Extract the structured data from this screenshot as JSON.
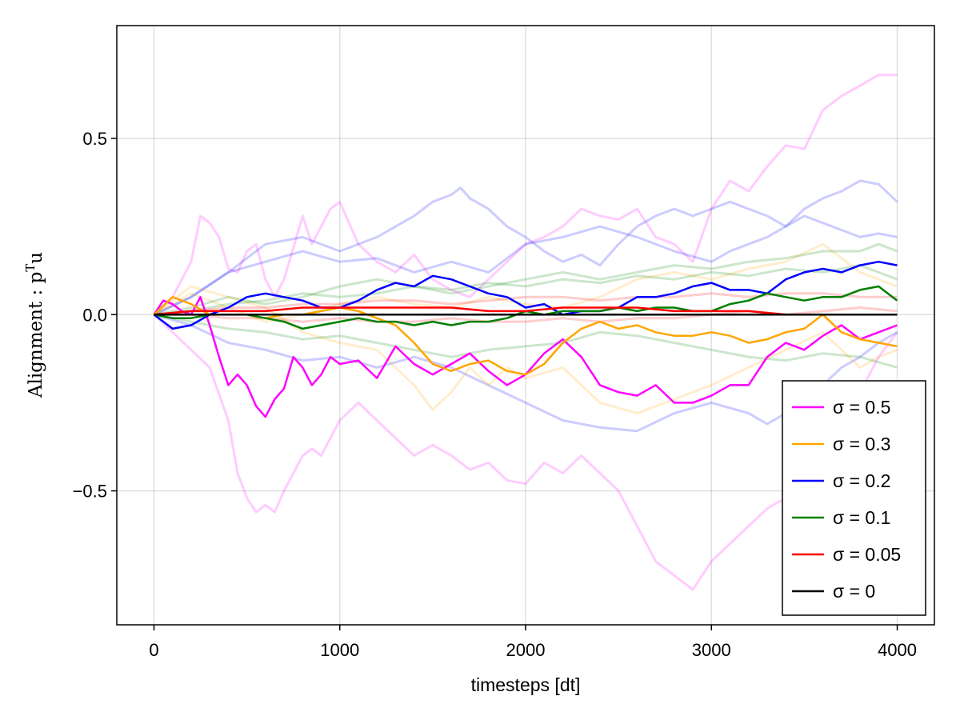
{
  "chart_data": {
    "type": "line",
    "title": "",
    "xlabel": "timesteps [dt]",
    "ylabel": {
      "main": "Alignment : p",
      "sup": "T",
      "tail": "u"
    },
    "xlim": [
      -200,
      4200
    ],
    "ylim": [
      -0.88,
      0.82
    ],
    "xticks": [
      0,
      1000,
      2000,
      3000,
      4000
    ],
    "xtick_labels": [
      "0",
      "1000",
      "2000",
      "3000",
      "4000"
    ],
    "yticks": [
      -0.5,
      0.0,
      0.5
    ],
    "ytick_labels": [
      "−0.5",
      "0.0",
      "0.5"
    ],
    "grid": true,
    "legend_position": "bottom-right",
    "series": [
      {
        "name": "σ = 0.5",
        "color": "#ff00ff",
        "opacity": 1.0,
        "x": [
          0,
          50,
          100,
          150,
          200,
          250,
          300,
          350,
          400,
          450,
          500,
          550,
          600,
          650,
          700,
          750,
          800,
          850,
          900,
          950,
          1000,
          1100,
          1200,
          1300,
          1400,
          1500,
          1600,
          1700,
          1800,
          1900,
          2000,
          2100,
          2200,
          2300,
          2400,
          2500,
          2600,
          2700,
          2800,
          2900,
          3000,
          3100,
          3200,
          3300,
          3400,
          3500,
          3600,
          3700,
          3800,
          3900,
          4000
        ],
        "y": [
          0.0,
          0.04,
          0.03,
          0.01,
          0.0,
          0.05,
          -0.03,
          -0.12,
          -0.2,
          -0.17,
          -0.2,
          -0.26,
          -0.29,
          -0.24,
          -0.21,
          -0.12,
          -0.15,
          -0.2,
          -0.17,
          -0.12,
          -0.14,
          -0.13,
          -0.18,
          -0.09,
          -0.14,
          -0.17,
          -0.14,
          -0.11,
          -0.16,
          -0.2,
          -0.17,
          -0.11,
          -0.07,
          -0.12,
          -0.2,
          -0.22,
          -0.23,
          -0.2,
          -0.25,
          -0.25,
          -0.23,
          -0.2,
          -0.2,
          -0.12,
          -0.08,
          -0.1,
          -0.06,
          -0.03,
          -0.07,
          -0.05,
          -0.03
        ]
      },
      {
        "name": "σ = 0.3",
        "color": "#ffa500",
        "opacity": 1.0,
        "x": [
          0,
          100,
          200,
          300,
          400,
          500,
          600,
          700,
          800,
          900,
          1000,
          1100,
          1200,
          1300,
          1400,
          1500,
          1600,
          1700,
          1800,
          1900,
          2000,
          2100,
          2200,
          2300,
          2400,
          2500,
          2600,
          2700,
          2800,
          2900,
          3000,
          3100,
          3200,
          3300,
          3400,
          3500,
          3600,
          3700,
          3800,
          3900,
          4000
        ],
        "y": [
          0.0,
          0.05,
          0.03,
          0.0,
          0.0,
          0.0,
          -0.01,
          0.0,
          0.0,
          0.01,
          0.02,
          0.01,
          -0.01,
          -0.03,
          -0.08,
          -0.14,
          -0.16,
          -0.14,
          -0.13,
          -0.16,
          -0.17,
          -0.14,
          -0.08,
          -0.04,
          -0.02,
          -0.04,
          -0.03,
          -0.05,
          -0.06,
          -0.06,
          -0.05,
          -0.06,
          -0.08,
          -0.07,
          -0.05,
          -0.04,
          0.0,
          -0.05,
          -0.07,
          -0.08,
          -0.09
        ]
      },
      {
        "name": "σ = 0.2",
        "color": "#0000ff",
        "opacity": 1.0,
        "x": [
          0,
          100,
          200,
          300,
          400,
          500,
          600,
          700,
          800,
          900,
          1000,
          1100,
          1200,
          1300,
          1400,
          1500,
          1600,
          1700,
          1800,
          1900,
          2000,
          2100,
          2200,
          2300,
          2400,
          2500,
          2600,
          2700,
          2800,
          2900,
          3000,
          3100,
          3200,
          3300,
          3400,
          3500,
          3600,
          3700,
          3800,
          3900,
          4000
        ],
        "y": [
          0.0,
          -0.04,
          -0.03,
          0.0,
          0.02,
          0.05,
          0.06,
          0.05,
          0.04,
          0.02,
          0.02,
          0.04,
          0.07,
          0.09,
          0.08,
          0.11,
          0.1,
          0.08,
          0.06,
          0.05,
          0.02,
          0.03,
          0.0,
          0.01,
          0.01,
          0.02,
          0.05,
          0.05,
          0.06,
          0.08,
          0.09,
          0.07,
          0.07,
          0.06,
          0.1,
          0.12,
          0.13,
          0.12,
          0.14,
          0.15,
          0.14
        ]
      },
      {
        "name": "σ = 0.1",
        "color": "#008000",
        "opacity": 1.0,
        "x": [
          0,
          100,
          200,
          300,
          400,
          500,
          600,
          700,
          800,
          900,
          1000,
          1100,
          1200,
          1300,
          1400,
          1500,
          1600,
          1700,
          1800,
          1900,
          2000,
          2100,
          2200,
          2300,
          2400,
          2500,
          2600,
          2700,
          2800,
          2900,
          3000,
          3100,
          3200,
          3300,
          3400,
          3500,
          3600,
          3700,
          3800,
          3900,
          4000
        ],
        "y": [
          0.0,
          -0.01,
          -0.01,
          0.0,
          0.0,
          0.0,
          -0.01,
          -0.02,
          -0.04,
          -0.03,
          -0.02,
          -0.01,
          -0.02,
          -0.02,
          -0.03,
          -0.02,
          -0.03,
          -0.02,
          -0.02,
          -0.01,
          0.01,
          0.0,
          0.01,
          0.01,
          0.01,
          0.02,
          0.01,
          0.02,
          0.02,
          0.01,
          0.01,
          0.03,
          0.04,
          0.06,
          0.05,
          0.04,
          0.05,
          0.05,
          0.07,
          0.08,
          0.04
        ]
      },
      {
        "name": "σ = 0.05",
        "color": "#ff0000",
        "opacity": 1.0,
        "x": [
          0,
          200,
          400,
          600,
          800,
          1000,
          1200,
          1400,
          1600,
          1800,
          2000,
          2200,
          2400,
          2600,
          2800,
          3000,
          3200,
          3400,
          3600,
          3800,
          4000
        ],
        "y": [
          0.0,
          0.01,
          0.01,
          0.01,
          0.02,
          0.02,
          0.02,
          0.02,
          0.02,
          0.01,
          0.01,
          0.02,
          0.02,
          0.02,
          0.01,
          0.01,
          0.01,
          0.0,
          0.0,
          0.0,
          0.0
        ]
      },
      {
        "name": "σ = 0",
        "color": "#000000",
        "opacity": 1.0,
        "x": [
          0,
          4000
        ],
        "y": [
          0.0,
          0.0
        ]
      },
      {
        "color": "#ff00ff",
        "opacity": 0.2,
        "x": [
          0,
          100,
          200,
          250,
          300,
          350,
          400,
          450,
          500,
          550,
          600,
          650,
          700,
          750,
          800,
          850,
          900,
          950,
          1000,
          1100,
          1200,
          1300,
          1400,
          1500,
          1600,
          1700,
          1800,
          1900,
          2000,
          2100,
          2200,
          2300,
          2400,
          2500,
          2600,
          2700,
          2800,
          2900,
          3000,
          3100,
          3200,
          3300,
          3400,
          3500,
          3600,
          3700,
          3800,
          3900,
          4000
        ],
        "y": [
          0.0,
          0.05,
          0.15,
          0.28,
          0.26,
          0.22,
          0.13,
          0.12,
          0.18,
          0.2,
          0.1,
          0.05,
          0.1,
          0.19,
          0.28,
          0.2,
          0.25,
          0.3,
          0.32,
          0.2,
          0.15,
          0.12,
          0.17,
          0.1,
          0.07,
          0.05,
          0.1,
          0.15,
          0.2,
          0.22,
          0.25,
          0.3,
          0.28,
          0.27,
          0.3,
          0.22,
          0.2,
          0.15,
          0.3,
          0.38,
          0.35,
          0.42,
          0.48,
          0.47,
          0.58,
          0.62,
          0.65,
          0.68,
          0.68
        ]
      },
      {
        "color": "#ff00ff",
        "opacity": 0.2,
        "x": [
          0,
          100,
          200,
          300,
          400,
          450,
          500,
          550,
          600,
          650,
          700,
          750,
          800,
          850,
          900,
          950,
          1000,
          1100,
          1200,
          1300,
          1400,
          1500,
          1600,
          1700,
          1800,
          1900,
          2000,
          2100,
          2200,
          2300,
          2400,
          2500,
          2600,
          2700,
          2800,
          2900,
          3000,
          3100,
          3200,
          3300,
          3400,
          3500,
          3600,
          3700,
          3800,
          3900,
          4000
        ],
        "y": [
          0.0,
          -0.05,
          -0.1,
          -0.15,
          -0.3,
          -0.45,
          -0.52,
          -0.56,
          -0.54,
          -0.56,
          -0.5,
          -0.45,
          -0.4,
          -0.38,
          -0.4,
          -0.35,
          -0.3,
          -0.25,
          -0.3,
          -0.35,
          -0.4,
          -0.37,
          -0.4,
          -0.44,
          -0.42,
          -0.47,
          -0.48,
          -0.42,
          -0.45,
          -0.4,
          -0.45,
          -0.5,
          -0.6,
          -0.7,
          -0.74,
          -0.78,
          -0.7,
          -0.65,
          -0.6,
          -0.55,
          -0.52,
          -0.58,
          -0.45,
          -0.32,
          -0.22,
          -0.12,
          -0.05
        ]
      },
      {
        "color": "#0000ff",
        "opacity": 0.2,
        "x": [
          0,
          200,
          400,
          600,
          800,
          1000,
          1200,
          1400,
          1500,
          1600,
          1650,
          1700,
          1800,
          1900,
          2000,
          2100,
          2200,
          2300,
          2400,
          2500,
          2600,
          2700,
          2800,
          2900,
          3000,
          3100,
          3200,
          3300,
          3400,
          3500,
          3600,
          3700,
          3800,
          3900,
          4000
        ],
        "y": [
          0.0,
          0.05,
          0.12,
          0.2,
          0.22,
          0.18,
          0.22,
          0.28,
          0.32,
          0.34,
          0.36,
          0.33,
          0.3,
          0.25,
          0.22,
          0.18,
          0.15,
          0.17,
          0.14,
          0.2,
          0.25,
          0.28,
          0.3,
          0.28,
          0.3,
          0.32,
          0.3,
          0.28,
          0.25,
          0.3,
          0.33,
          0.35,
          0.38,
          0.37,
          0.32
        ]
      },
      {
        "color": "#0000ff",
        "opacity": 0.2,
        "x": [
          0,
          200,
          400,
          600,
          800,
          1000,
          1200,
          1400,
          1600,
          1800,
          2000,
          2200,
          2400,
          2600,
          2800,
          3000,
          3100,
          3200,
          3300,
          3400,
          3500,
          3600,
          3700,
          3800,
          3900,
          4000
        ],
        "y": [
          0.0,
          0.05,
          0.12,
          0.15,
          0.18,
          0.15,
          0.16,
          0.12,
          0.15,
          0.12,
          0.2,
          0.22,
          0.25,
          0.22,
          0.18,
          0.15,
          0.18,
          0.2,
          0.22,
          0.25,
          0.28,
          0.26,
          0.24,
          0.22,
          0.23,
          0.22
        ]
      },
      {
        "color": "#0000ff",
        "opacity": 0.2,
        "x": [
          0,
          200,
          400,
          600,
          800,
          1000,
          1200,
          1400,
          1600,
          1800,
          2000,
          2200,
          2400,
          2600,
          2800,
          3000,
          3200,
          3300,
          3400,
          3500,
          3600,
          3700,
          3800,
          3900,
          4000
        ],
        "y": [
          0.0,
          -0.03,
          -0.08,
          -0.1,
          -0.13,
          -0.12,
          -0.15,
          -0.12,
          -0.15,
          -0.2,
          -0.25,
          -0.3,
          -0.32,
          -0.33,
          -0.28,
          -0.25,
          -0.28,
          -0.31,
          -0.28,
          -0.25,
          -0.2,
          -0.15,
          -0.12,
          -0.08,
          -0.05
        ]
      },
      {
        "color": "#ffa500",
        "opacity": 0.2,
        "x": [
          0,
          200,
          400,
          600,
          800,
          1000,
          1200,
          1400,
          1500,
          1600,
          1700,
          1800,
          1900,
          2000,
          2200,
          2400,
          2600,
          2800,
          3000,
          3200,
          3400,
          3600,
          3700,
          3800,
          3900,
          4000
        ],
        "y": [
          0.0,
          0.08,
          0.05,
          0.02,
          -0.05,
          -0.08,
          -0.1,
          -0.2,
          -0.27,
          -0.22,
          -0.15,
          -0.2,
          -0.15,
          -0.18,
          -0.15,
          -0.25,
          -0.28,
          -0.24,
          -0.2,
          -0.15,
          -0.1,
          -0.05,
          -0.1,
          -0.15,
          -0.12,
          -0.1
        ]
      },
      {
        "color": "#ffa500",
        "opacity": 0.2,
        "x": [
          0,
          200,
          400,
          600,
          800,
          1000,
          1200,
          1400,
          1600,
          1800,
          2000,
          2200,
          2400,
          2600,
          2800,
          3000,
          3200,
          3400,
          3600,
          3800,
          4000
        ],
        "y": [
          0.0,
          0.06,
          0.02,
          -0.02,
          0.0,
          0.03,
          0.05,
          0.03,
          0.02,
          0.05,
          0.03,
          0.02,
          0.05,
          0.1,
          0.12,
          0.1,
          0.13,
          0.15,
          0.2,
          0.12,
          0.08
        ]
      },
      {
        "color": "#008000",
        "opacity": 0.2,
        "x": [
          0,
          200,
          400,
          600,
          800,
          1000,
          1200,
          1400,
          1600,
          1800,
          2000,
          2200,
          2400,
          2600,
          2800,
          3000,
          3200,
          3400,
          3600,
          3800,
          3900,
          4000
        ],
        "y": [
          0.0,
          0.02,
          0.05,
          0.03,
          0.05,
          0.08,
          0.1,
          0.08,
          0.06,
          0.08,
          0.1,
          0.12,
          0.1,
          0.12,
          0.14,
          0.13,
          0.15,
          0.16,
          0.18,
          0.18,
          0.2,
          0.18
        ]
      },
      {
        "color": "#008000",
        "opacity": 0.2,
        "x": [
          0,
          200,
          400,
          600,
          800,
          1000,
          1200,
          1400,
          1600,
          1800,
          2000,
          2200,
          2400,
          2600,
          2800,
          3000,
          3200,
          3400,
          3600,
          3800,
          4000
        ],
        "y": [
          0.0,
          -0.02,
          -0.04,
          -0.05,
          -0.07,
          -0.06,
          -0.08,
          -0.1,
          -0.12,
          -0.1,
          -0.09,
          -0.08,
          -0.05,
          -0.06,
          -0.08,
          -0.1,
          -0.12,
          -0.13,
          -0.11,
          -0.12,
          -0.15
        ]
      },
      {
        "color": "#008000",
        "opacity": 0.2,
        "x": [
          0,
          200,
          400,
          600,
          800,
          1000,
          1200,
          1400,
          1600,
          1800,
          2000,
          2200,
          2400,
          2600,
          2800,
          3000,
          3200,
          3400,
          3600,
          3800,
          4000
        ],
        "y": [
          0.0,
          0.01,
          0.03,
          0.04,
          0.06,
          0.05,
          0.06,
          0.08,
          0.07,
          0.09,
          0.08,
          0.1,
          0.09,
          0.11,
          0.1,
          0.12,
          0.11,
          0.13,
          0.12,
          0.14,
          0.1
        ]
      },
      {
        "color": "#ff0000",
        "opacity": 0.2,
        "x": [
          0,
          200,
          400,
          600,
          800,
          1000,
          1200,
          1400,
          1600,
          1800,
          2000,
          2200,
          2400,
          2600,
          2800,
          3000,
          3200,
          3400,
          3600,
          3800,
          4000
        ],
        "y": [
          0.0,
          0.01,
          0.02,
          0.02,
          0.03,
          0.03,
          0.04,
          0.04,
          0.03,
          0.04,
          0.05,
          0.05,
          0.04,
          0.05,
          0.05,
          0.06,
          0.05,
          0.06,
          0.06,
          0.05,
          0.05
        ]
      },
      {
        "color": "#ff0000",
        "opacity": 0.2,
        "x": [
          0,
          200,
          400,
          600,
          800,
          1000,
          1200,
          1400,
          1600,
          1800,
          2000,
          2200,
          2400,
          2600,
          2800,
          3000,
          3200,
          3400,
          3600,
          3800,
          4000
        ],
        "y": [
          0.0,
          0.0,
          -0.01,
          -0.01,
          -0.02,
          -0.01,
          -0.02,
          -0.02,
          -0.01,
          -0.02,
          -0.02,
          -0.01,
          -0.02,
          -0.01,
          -0.01,
          0.0,
          0.01,
          0.0,
          0.01,
          0.02,
          0.01
        ]
      }
    ]
  }
}
